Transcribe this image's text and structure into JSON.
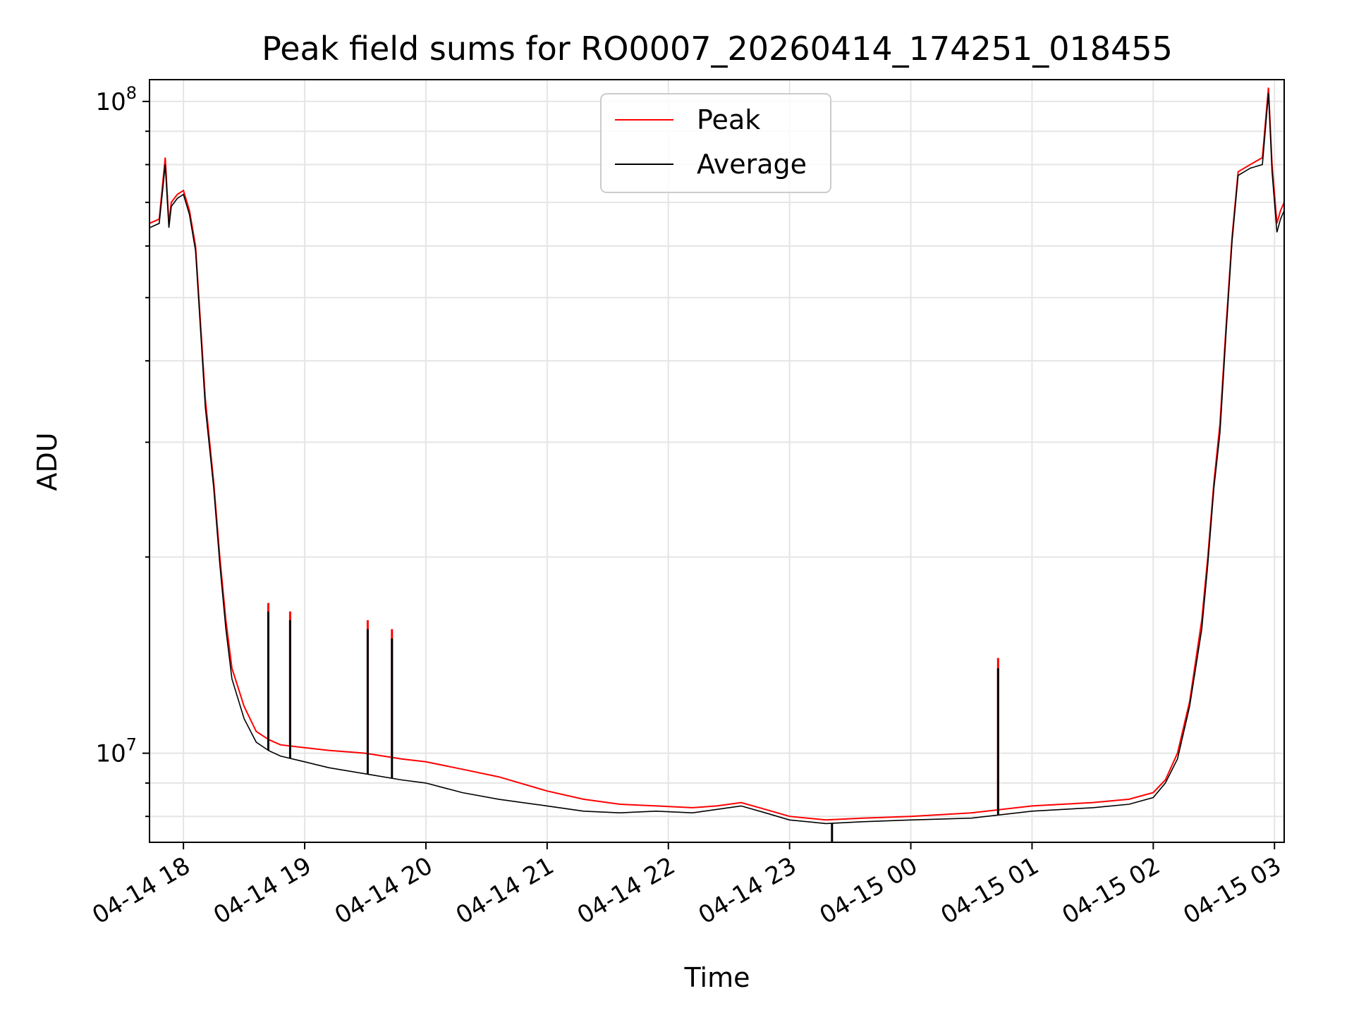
{
  "chart_data": {
    "type": "line",
    "title": "Peak field sums for RO0007_20260414_174251_018455",
    "xlabel": "Time",
    "ylabel": "ADU",
    "yscale": "log",
    "ylim": [
      7300000,
      108000000
    ],
    "xlim_hours": [
      17.72,
      27.08
    ],
    "grid": true,
    "legend_location": "upper center",
    "x_ticks": [
      {
        "label": "04-14 18",
        "hours": 18
      },
      {
        "label": "04-14 19",
        "hours": 19
      },
      {
        "label": "04-14 20",
        "hours": 20
      },
      {
        "label": "04-14 21",
        "hours": 21
      },
      {
        "label": "04-14 22",
        "hours": 22
      },
      {
        "label": "04-14 23",
        "hours": 23
      },
      {
        "label": "04-15 00",
        "hours": 24
      },
      {
        "label": "04-15 01",
        "hours": 25
      },
      {
        "label": "04-15 02",
        "hours": 26
      },
      {
        "label": "04-15 03",
        "hours": 27
      }
    ],
    "y_major_ticks": [
      {
        "base": "10",
        "exp": "7",
        "value": 10000000
      },
      {
        "base": "10",
        "exp": "8",
        "value": 100000000
      }
    ],
    "series": [
      {
        "name": "Peak",
        "color": "#ff0000",
        "x_hours": [
          17.72,
          17.8,
          17.85,
          17.88,
          17.9,
          17.95,
          18.0,
          18.05,
          18.1,
          18.15,
          18.18,
          18.25,
          18.3,
          18.35,
          18.4,
          18.5,
          18.6,
          18.7,
          18.8,
          19.0,
          19.2,
          19.5,
          19.8,
          20.0,
          20.3,
          20.6,
          21.0,
          21.3,
          21.6,
          21.9,
          22.2,
          22.4,
          22.6,
          22.8,
          23.0,
          23.3,
          23.6,
          24.0,
          24.5,
          25.0,
          25.5,
          25.8,
          26.0,
          26.1,
          26.2,
          26.3,
          26.4,
          26.45,
          26.5,
          26.55,
          26.6,
          26.65,
          26.7,
          26.8,
          26.9,
          26.95,
          26.98,
          27.02,
          27.05,
          27.08
        ],
        "values": [
          65000000,
          66000000,
          82000000,
          65000000,
          70000000,
          72000000,
          73000000,
          68000000,
          60000000,
          43000000,
          35000000,
          26000000,
          20000000,
          16000000,
          13500000,
          11800000,
          10800000,
          10500000,
          10300000,
          10200000,
          10100000,
          10000000,
          9800000,
          9700000,
          9450000,
          9200000,
          8750000,
          8500000,
          8350000,
          8300000,
          8250000,
          8300000,
          8400000,
          8200000,
          8000000,
          7900000,
          7950000,
          8000000,
          8100000,
          8300000,
          8400000,
          8500000,
          8700000,
          9100000,
          10000000,
          12000000,
          16000000,
          20000000,
          26000000,
          32000000,
          45000000,
          62000000,
          78000000,
          80000000,
          82000000,
          105000000,
          80000000,
          65000000,
          68000000,
          70000000
        ],
        "spikes": [
          {
            "hours": 18.7,
            "value": 17000000
          },
          {
            "hours": 18.88,
            "value": 16500000
          },
          {
            "hours": 19.52,
            "value": 16000000
          },
          {
            "hours": 19.72,
            "value": 15500000
          },
          {
            "hours": 24.72,
            "value": 14000000
          }
        ]
      },
      {
        "name": "Average",
        "color": "#000000",
        "x_hours": [
          17.72,
          17.8,
          17.85,
          17.88,
          17.9,
          17.95,
          18.0,
          18.05,
          18.1,
          18.15,
          18.18,
          18.25,
          18.3,
          18.35,
          18.4,
          18.5,
          18.6,
          18.7,
          18.8,
          19.0,
          19.2,
          19.5,
          19.8,
          20.0,
          20.3,
          20.6,
          21.0,
          21.3,
          21.6,
          21.9,
          22.2,
          22.4,
          22.6,
          22.8,
          23.0,
          23.3,
          23.6,
          24.0,
          24.5,
          25.0,
          25.5,
          25.8,
          26.0,
          26.1,
          26.2,
          26.3,
          26.4,
          26.45,
          26.5,
          26.55,
          26.6,
          26.65,
          26.7,
          26.8,
          26.9,
          26.95,
          26.98,
          27.02,
          27.05,
          27.08
        ],
        "values": [
          64000000,
          65000000,
          80000000,
          64000000,
          69000000,
          71000000,
          72000000,
          67000000,
          59000000,
          42000000,
          34000000,
          25500000,
          19500000,
          15500000,
          13000000,
          11300000,
          10400000,
          10100000,
          9900000,
          9700000,
          9500000,
          9300000,
          9100000,
          9000000,
          8700000,
          8500000,
          8300000,
          8150000,
          8100000,
          8150000,
          8100000,
          8200000,
          8300000,
          8100000,
          7900000,
          7800000,
          7850000,
          7900000,
          7950000,
          8150000,
          8250000,
          8350000,
          8550000,
          9000000,
          9800000,
          11800000,
          15500000,
          19500000,
          25500000,
          31000000,
          44000000,
          61000000,
          77000000,
          79000000,
          80000000,
          103000000,
          78000000,
          63000000,
          66000000,
          68000000
        ],
        "spikes": [
          {
            "hours": 18.7,
            "value": 16500000
          },
          {
            "hours": 18.88,
            "value": 16000000
          },
          {
            "hours": 19.52,
            "value": 15500000
          },
          {
            "hours": 19.72,
            "value": 15000000
          },
          {
            "hours": 24.72,
            "value": 13500000
          },
          {
            "hours": 23.35,
            "value": 7300000
          }
        ]
      }
    ]
  }
}
